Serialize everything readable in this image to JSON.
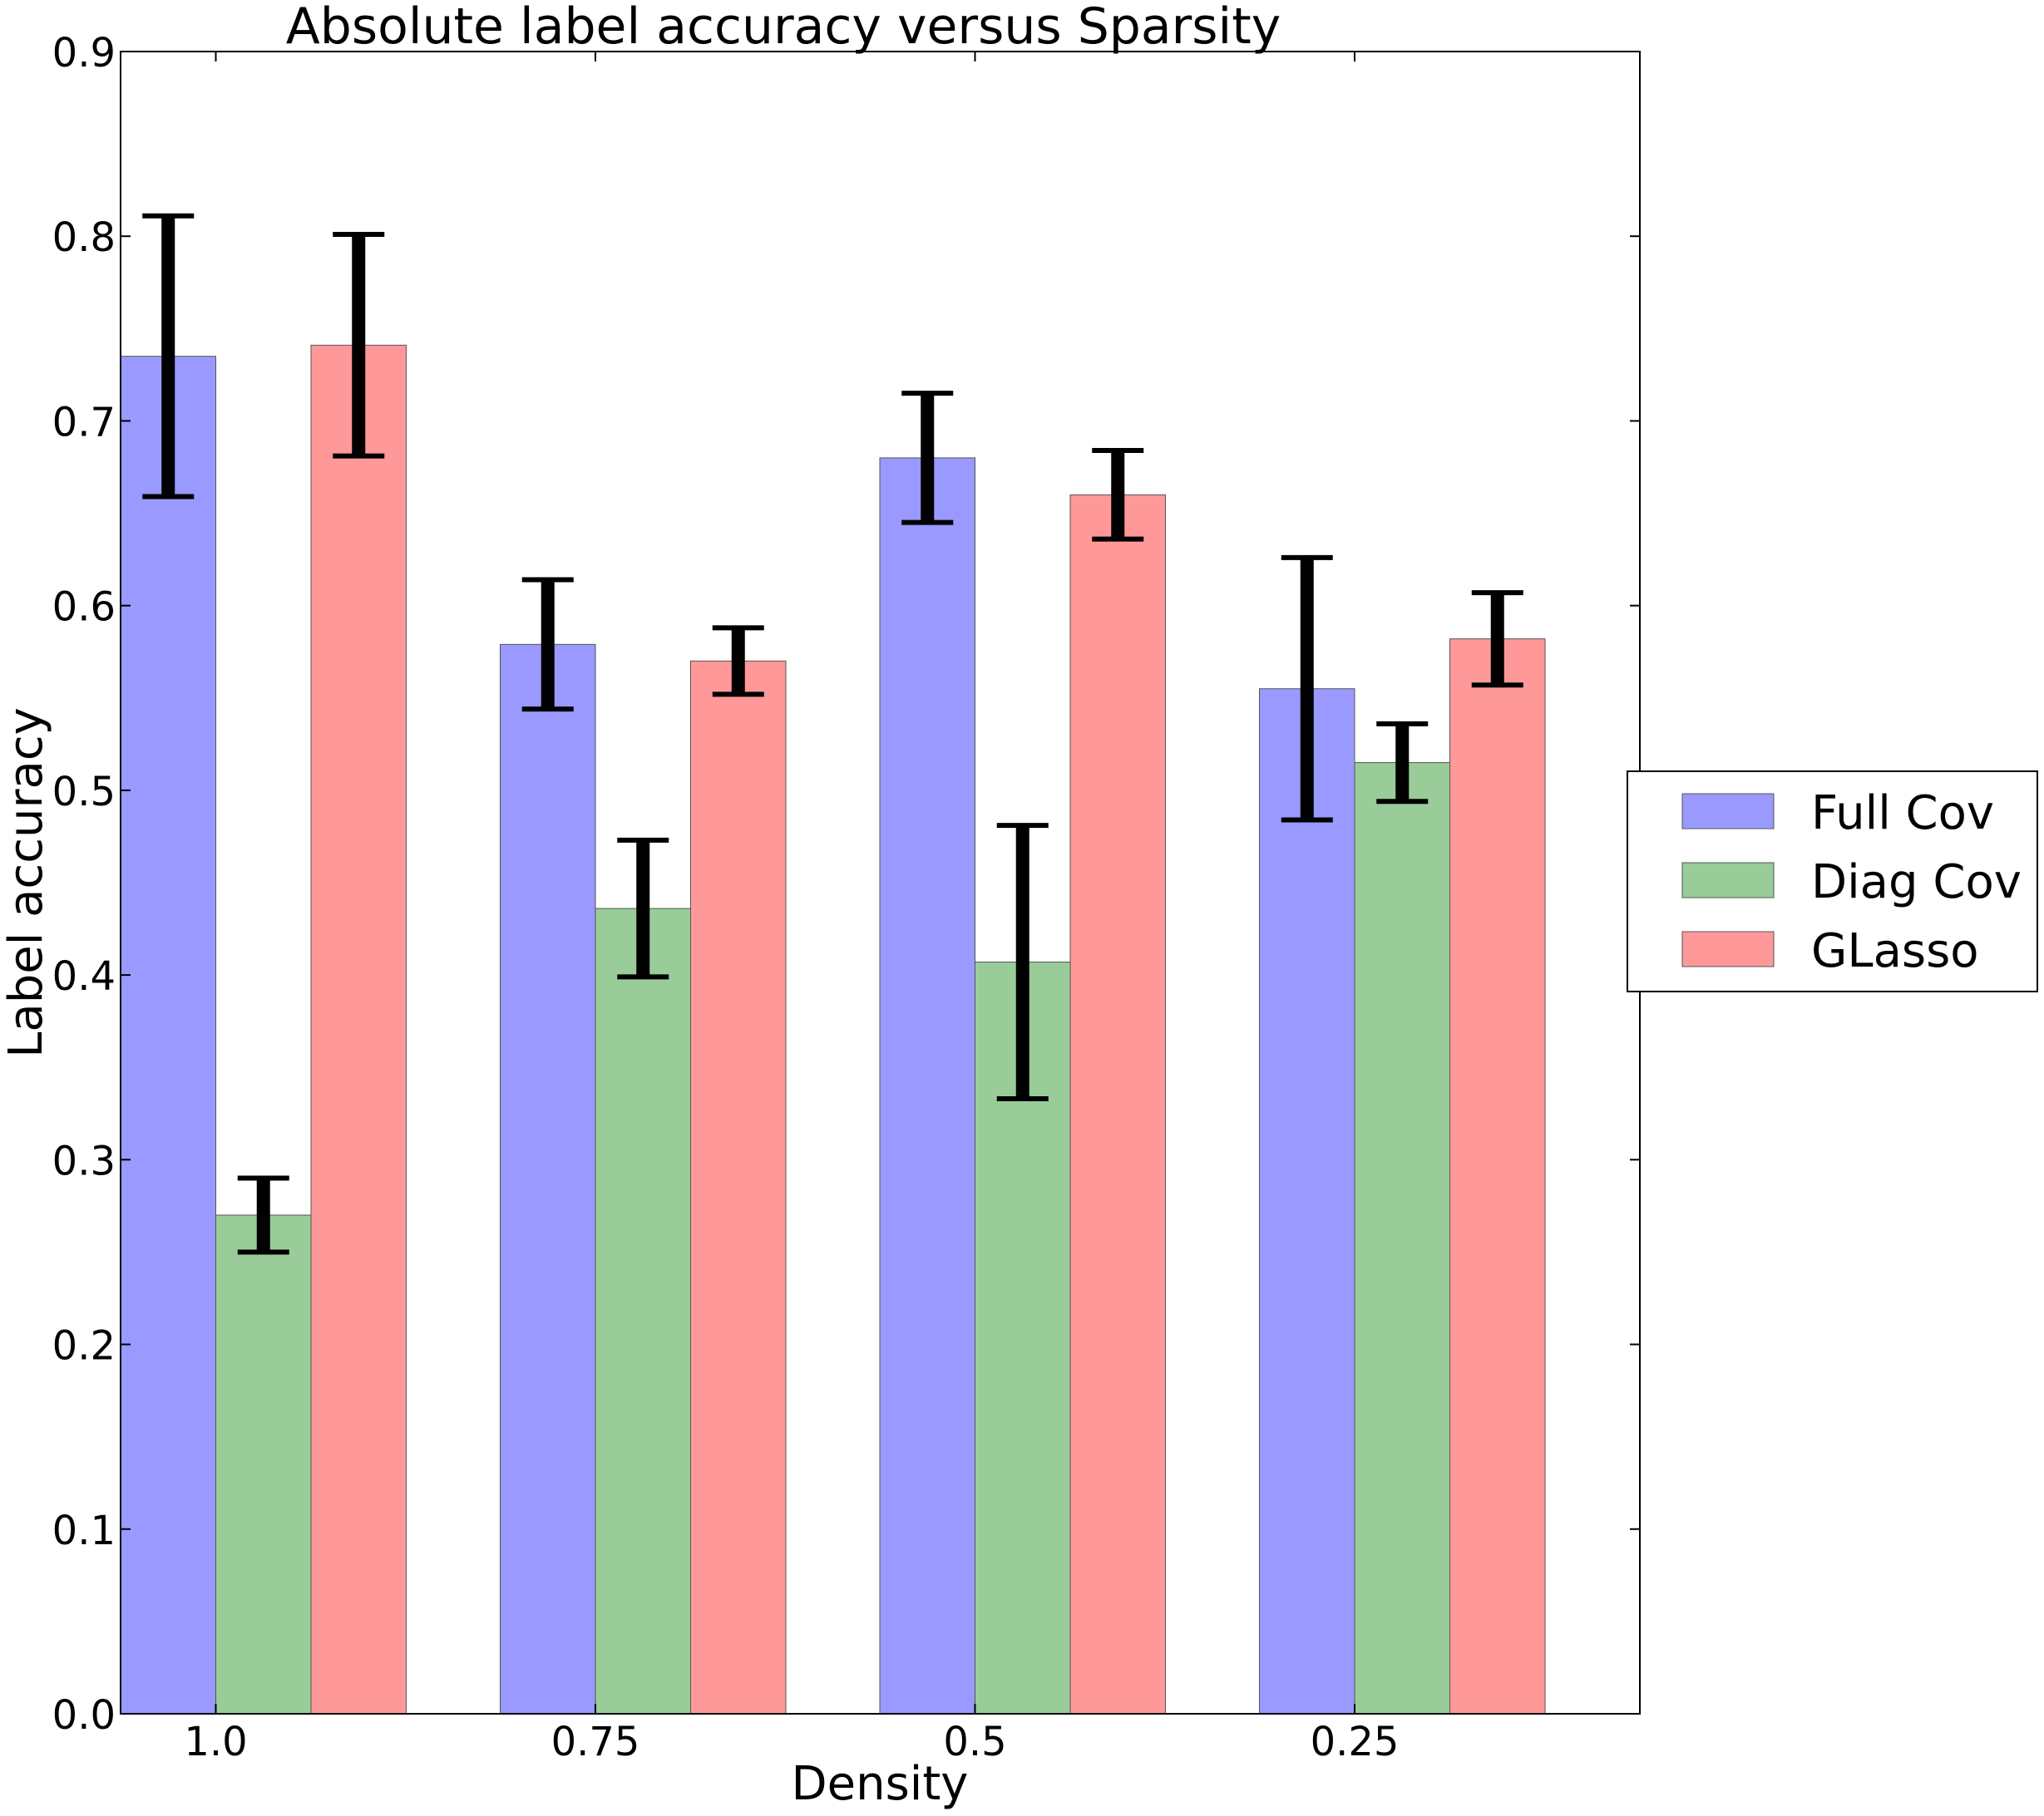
{
  "chart_data": {
    "type": "bar",
    "title": "Absolute label accuracy versus Sparsity",
    "xlabel": "Density",
    "ylabel": "Label accuracy",
    "categories": [
      "1.0",
      "0.75",
      "0.5",
      "0.25"
    ],
    "ylim": [
      0.0,
      0.9
    ],
    "yticks": [
      "0.0",
      "0.1",
      "0.2",
      "0.3",
      "0.4",
      "0.5",
      "0.6",
      "0.7",
      "0.8",
      "0.9"
    ],
    "grid": false,
    "legend_position": "right",
    "series": [
      {
        "name": "Full Cov",
        "color": "#9999ff",
        "values": [
          0.735,
          0.579,
          0.68,
          0.555
        ],
        "errors": [
          0.076,
          0.035,
          0.035,
          0.071
        ]
      },
      {
        "name": "Diag Cov",
        "color": "#99cc99",
        "values": [
          0.27,
          0.436,
          0.407,
          0.515
        ],
        "errors": [
          0.02,
          0.037,
          0.074,
          0.021
        ]
      },
      {
        "name": "GLasso",
        "color": "#ff9999",
        "values": [
          0.741,
          0.57,
          0.66,
          0.582
        ],
        "errors": [
          0.06,
          0.018,
          0.024,
          0.025
        ]
      }
    ]
  }
}
